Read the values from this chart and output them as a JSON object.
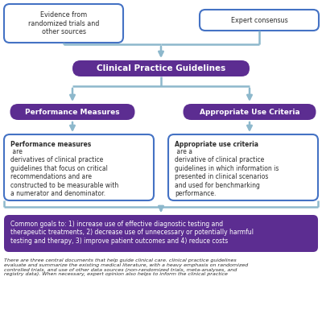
{
  "bg_color": "#ffffff",
  "purple_dark": "#5c2d91",
  "blue_border": "#4472c4",
  "arrow_color": "#8db8cc",
  "text_white": "#ffffff",
  "text_dark": "#2d2d2d",
  "box_top_left_text": "Evidence from\nrandomized trials and\nother sources",
  "box_top_right_text": "Expert consensus",
  "box_cpg_text": "Clinical Practice Guidelines",
  "box_pm_text": "Performance Measures",
  "box_auc_text": "Appropriate Use Criteria",
  "pm_bold": "Performance measures",
  "pm_rest": " are\nderivatives of clinical practice\nguidelines that focus on critical\nrecommendations and are\nconstructed to be measurable with\na numerator and denominator.",
  "auc_bold": "Appropriate use criteria",
  "auc_rest": " are a\nderivative of clinical practice\nguidelines in which information is\npresented in clinical scenarios\nand used for benchmarking\nperformance.",
  "box_goals_text": "Common goals to: 1) increase use of effective diagnostic testing and\ntherapeutic treatments, 2) decrease use of unnecessary or potentially harmful\ntesting and therapy, 3) improve patient outcomes and 4) reduce costs",
  "caption": "There are three central documents that help guide clinical care. clinical practice guidelines\nevaluate and summarize the existing medical literature, with a heavy emphasis on randomized\ncontrolled trials, and use of other data sources (non-randomized trials, meta-analyses, and\nregistry data). When necessary, expert opinion also helps to inform the clinical practice"
}
